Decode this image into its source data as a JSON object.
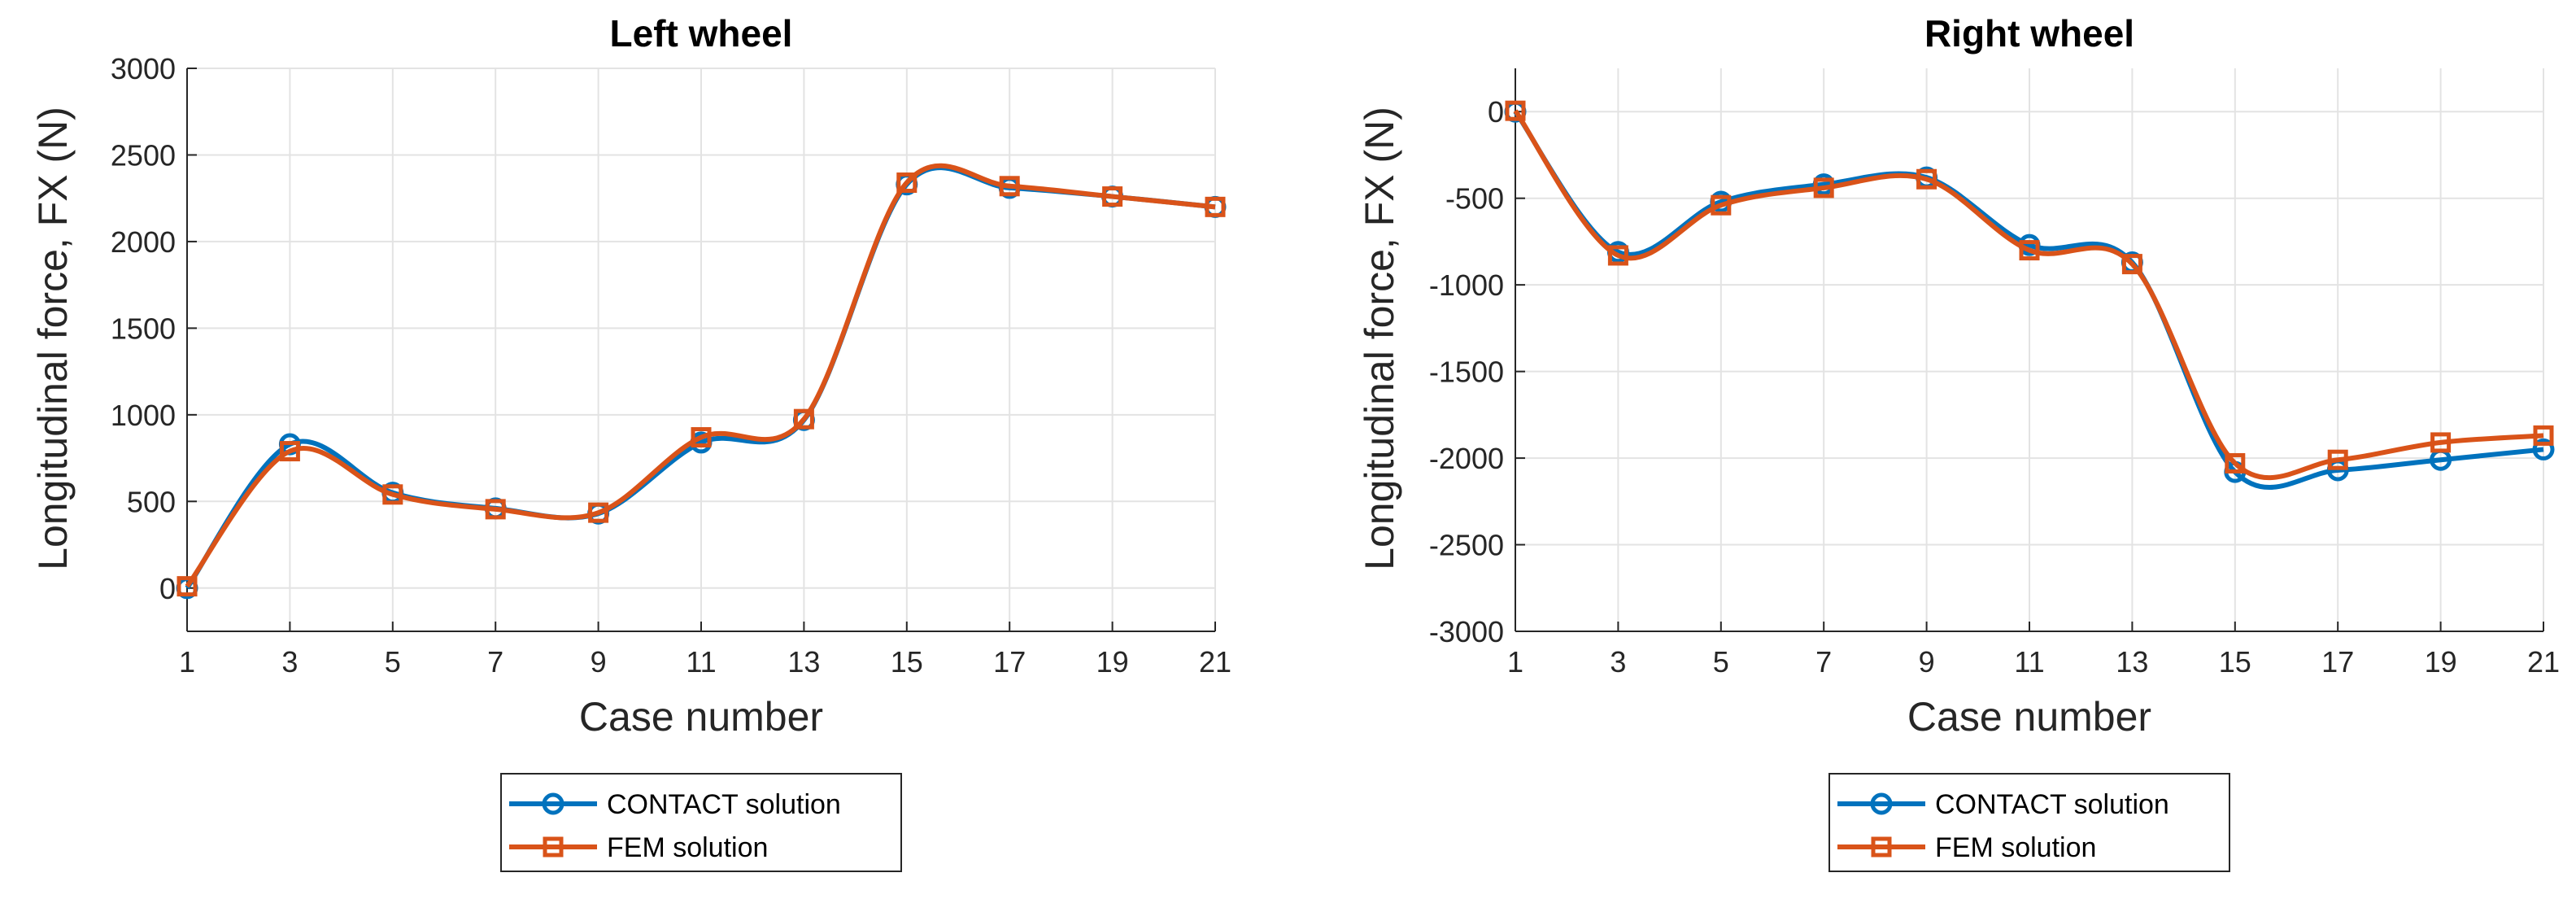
{
  "chart_data": [
    {
      "type": "line",
      "title": "Left wheel",
      "xlabel": "Case number",
      "ylabel": "Longitudinal force, FX (N)",
      "x": [
        1,
        3,
        5,
        7,
        9,
        11,
        13,
        15,
        17,
        19,
        21
      ],
      "x_ticks": [
        "1",
        "3",
        "5",
        "7",
        "9",
        "11",
        "13",
        "15",
        "17",
        "19",
        "21"
      ],
      "xlim": [
        1,
        21
      ],
      "ylim": [
        -250,
        3000
      ],
      "y_ticks": [
        0,
        500,
        1000,
        1500,
        2000,
        2500,
        3000
      ],
      "y_tick_labels": [
        "0",
        "500",
        "1000",
        "1500",
        "2000",
        "2500",
        "3000"
      ],
      "grid": true,
      "series": [
        {
          "name": "CONTACT solution",
          "marker": "circle",
          "color": "#0072bd",
          "values": [
            0,
            830,
            550,
            460,
            430,
            840,
            970,
            2330,
            2310,
            2260,
            2200
          ]
        },
        {
          "name": "FEM solution",
          "marker": "square",
          "color": "#d95319",
          "values": [
            10,
            790,
            540,
            455,
            435,
            870,
            975,
            2340,
            2320,
            2260,
            2200
          ]
        }
      ],
      "legend": [
        "CONTACT solution",
        "FEM solution"
      ],
      "legend_position": "bottom-outside"
    },
    {
      "type": "line",
      "title": "Right wheel",
      "xlabel": "Case number",
      "ylabel": "Longitudinal force, FX (N)",
      "x": [
        1,
        3,
        5,
        7,
        9,
        11,
        13,
        15,
        17,
        19,
        21
      ],
      "x_ticks": [
        "1",
        "3",
        "5",
        "7",
        "9",
        "11",
        "13",
        "15",
        "17",
        "19",
        "21"
      ],
      "xlim": [
        1,
        21
      ],
      "ylim": [
        -3000,
        250
      ],
      "y_ticks": [
        0,
        -500,
        -1000,
        -1500,
        -2000,
        -2500,
        -3000
      ],
      "y_tick_labels": [
        "0",
        "-500",
        "-1000",
        "-1500",
        "-2000",
        "-2500",
        "-3000"
      ],
      "grid": true,
      "series": [
        {
          "name": "CONTACT solution",
          "marker": "circle",
          "color": "#0072bd",
          "values": [
            0,
            -810,
            -520,
            -420,
            -380,
            -770,
            -870,
            -2080,
            -2070,
            -2010,
            -1950
          ]
        },
        {
          "name": "FEM solution",
          "marker": "square",
          "color": "#d95319",
          "values": [
            5,
            -830,
            -540,
            -440,
            -390,
            -800,
            -880,
            -2030,
            -2010,
            -1910,
            -1870
          ]
        }
      ],
      "legend": [
        "CONTACT solution",
        "FEM solution"
      ],
      "legend_position": "bottom-outside"
    }
  ]
}
